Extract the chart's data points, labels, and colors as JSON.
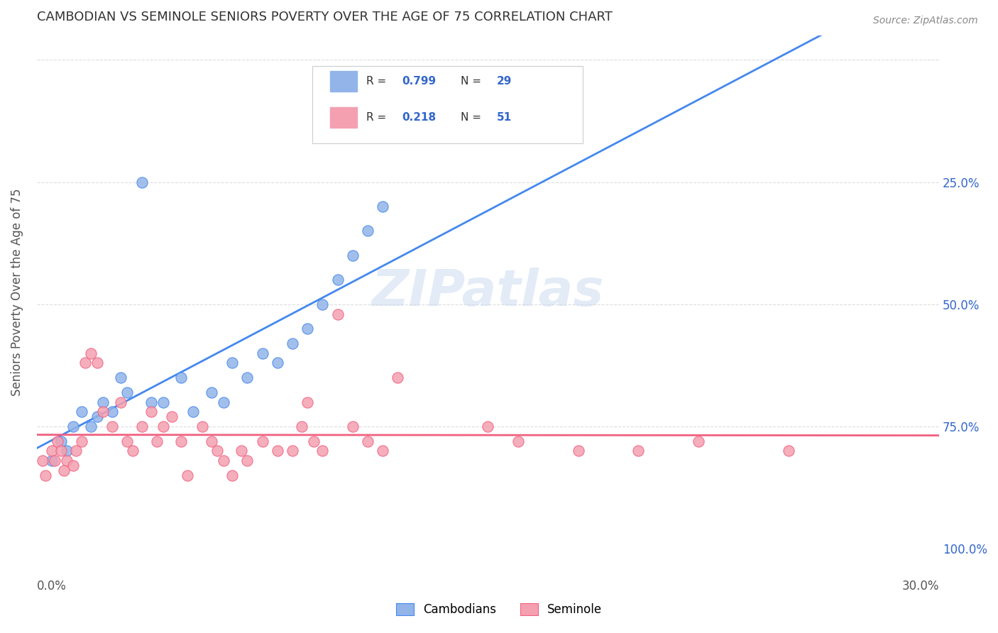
{
  "title": "CAMBODIAN VS SEMINOLE SENIORS POVERTY OVER THE AGE OF 75 CORRELATION CHART",
  "source": "Source: ZipAtlas.com",
  "ylabel": "Seniors Poverty Over the Age of 75",
  "legend_cambodian": "Cambodians",
  "legend_seminole": "Seminole",
  "R_cambodian": "0.799",
  "N_cambodian": "29",
  "R_seminole": "0.218",
  "N_seminole": "51",
  "color_cambodian": "#92b4e8",
  "color_seminole": "#f4a0b0",
  "color_blue_line": "#4488ee",
  "color_pink_line": "#f06080",
  "color_title": "#333333",
  "color_r_value": "#3366cc",
  "watermark_color": "#c8d8f0",
  "background_color": "#ffffff",
  "grid_color": "#dddddd",
  "cambodian_x": [
    0.005,
    0.008,
    0.01,
    0.012,
    0.015,
    0.018,
    0.02,
    0.022,
    0.025,
    0.028,
    0.03,
    0.035,
    0.038,
    0.042,
    0.048,
    0.052,
    0.058,
    0.062,
    0.065,
    0.07,
    0.075,
    0.08,
    0.085,
    0.09,
    0.095,
    0.1,
    0.105,
    0.11,
    0.115
  ],
  "cambodian_y": [
    0.18,
    0.22,
    0.2,
    0.25,
    0.28,
    0.25,
    0.27,
    0.3,
    0.28,
    0.35,
    0.32,
    0.75,
    0.3,
    0.3,
    0.35,
    0.28,
    0.32,
    0.3,
    0.38,
    0.35,
    0.4,
    0.38,
    0.42,
    0.45,
    0.5,
    0.55,
    0.6,
    0.65,
    0.7
  ],
  "seminole_x": [
    0.002,
    0.003,
    0.005,
    0.006,
    0.007,
    0.008,
    0.009,
    0.01,
    0.012,
    0.013,
    0.015,
    0.016,
    0.018,
    0.02,
    0.022,
    0.025,
    0.028,
    0.03,
    0.032,
    0.035,
    0.038,
    0.04,
    0.042,
    0.045,
    0.048,
    0.05,
    0.055,
    0.058,
    0.06,
    0.062,
    0.065,
    0.068,
    0.07,
    0.075,
    0.08,
    0.085,
    0.088,
    0.09,
    0.092,
    0.095,
    0.1,
    0.105,
    0.11,
    0.115,
    0.12,
    0.15,
    0.16,
    0.18,
    0.2,
    0.22,
    0.25
  ],
  "seminole_y": [
    0.18,
    0.15,
    0.2,
    0.18,
    0.22,
    0.2,
    0.16,
    0.18,
    0.17,
    0.2,
    0.22,
    0.38,
    0.4,
    0.38,
    0.28,
    0.25,
    0.3,
    0.22,
    0.2,
    0.25,
    0.28,
    0.22,
    0.25,
    0.27,
    0.22,
    0.15,
    0.25,
    0.22,
    0.2,
    0.18,
    0.15,
    0.2,
    0.18,
    0.22,
    0.2,
    0.2,
    0.25,
    0.3,
    0.22,
    0.2,
    0.48,
    0.25,
    0.22,
    0.2,
    0.35,
    0.25,
    0.22,
    0.2,
    0.2,
    0.22,
    0.2
  ],
  "xlim": [
    0.0,
    0.3
  ],
  "ylim": [
    0.0,
    1.05
  ],
  "xticks": [
    0.0,
    0.05,
    0.1,
    0.15,
    0.2,
    0.25,
    0.3
  ],
  "yticks": [
    0.0,
    0.25,
    0.5,
    0.75,
    1.0
  ]
}
